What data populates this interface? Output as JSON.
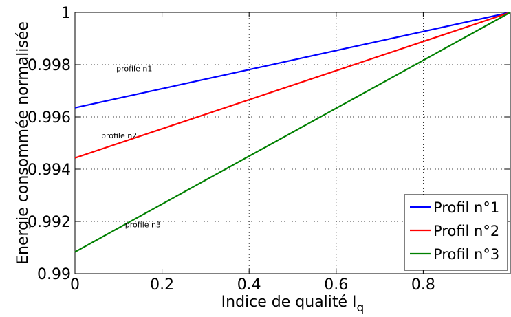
{
  "chart_data": {
    "type": "line",
    "xlabel": "Indice de qualité I",
    "xlabel_sub": "q",
    "ylabel": "Energie consommée normalisée",
    "xlim": [
      0,
      1
    ],
    "ylim": [
      0.99,
      1
    ],
    "xticks": [
      0,
      0.2,
      0.4,
      0.6,
      0.8
    ],
    "xtick_labels": [
      "0",
      "0.2",
      "0.4",
      "0.6",
      "0.8"
    ],
    "yticks": [
      0.99,
      0.992,
      0.994,
      0.996,
      0.998,
      1
    ],
    "ytick_labels": [
      "0.99",
      "0.992",
      "0.994",
      "0.996",
      "0.998",
      "1"
    ],
    "grid": true,
    "legend_position": "bottom-right",
    "series": [
      {
        "name": "Profil n°1",
        "color": "#0000ff",
        "x": [
          0,
          1
        ],
        "y": [
          0.99635,
          1.0
        ]
      },
      {
        "name": "Profil n°2",
        "color": "#ff0000",
        "x": [
          0,
          1
        ],
        "y": [
          0.99443,
          1.0
        ]
      },
      {
        "name": "Profil n°3",
        "color": "#008000",
        "x": [
          0,
          1
        ],
        "y": [
          0.99083,
          1.0
        ]
      }
    ],
    "annotations": [
      {
        "text": "profile n1",
        "x": 0.095,
        "y": 0.99775
      },
      {
        "text": "profile n2",
        "x": 0.06,
        "y": 0.99518
      },
      {
        "text": "profile n3",
        "x": 0.115,
        "y": 0.99178
      }
    ]
  }
}
